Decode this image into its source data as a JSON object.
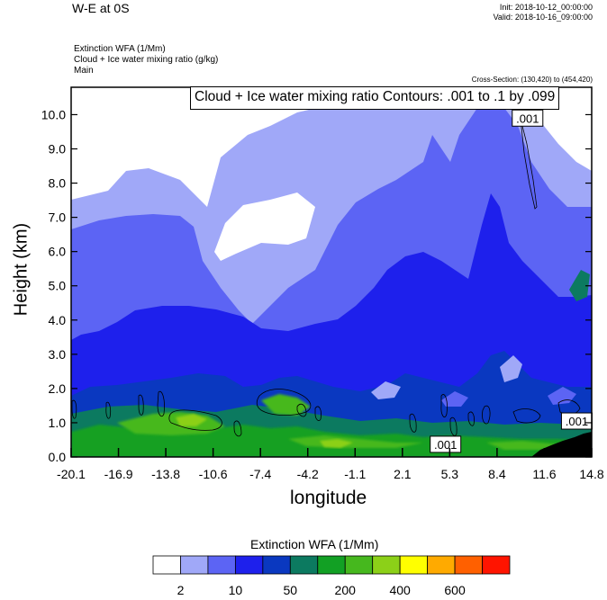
{
  "header": {
    "title": "W-E at 0S",
    "init": "Init: 2018-10-12_00:00:00",
    "valid": "Valid: 2018-10-16_09:00:00",
    "subtitle_lines": [
      "Extinction WFA   (1/Mm)",
      "Cloud + Ice water mixing ratio   (g/kg)",
      "Main"
    ],
    "cross_section": "Cross-Section: (130,420) to (454,420)",
    "contour_label": "Cloud + Ice water mixing ratio Contours: .001 to .1 by .099"
  },
  "chart_data": {
    "type": "heatmap",
    "xlabel": "longitude",
    "ylabel": "Height (km)",
    "xlim": [
      -20.1,
      14.8
    ],
    "ylim": [
      0.0,
      10.8
    ],
    "x_ticks": [
      "-20.1",
      "-16.9",
      "-13.8",
      "-10.6",
      "-7.4",
      "-4.2",
      "-1.1",
      "2.1",
      "5.3",
      "8.4",
      "11.6",
      "14.8"
    ],
    "y_ticks": [
      "0.0",
      "1.0",
      "2.0",
      "3.0",
      "4.0",
      "5.0",
      "6.0",
      "7.0",
      "8.0",
      "9.0",
      "10.0"
    ],
    "y_tick_values": [
      0,
      1,
      2,
      3,
      4,
      5,
      6,
      7,
      8,
      9,
      10
    ],
    "contour_labels": [
      {
        "text": ".001",
        "x": 10.5,
        "y": 9.9
      },
      {
        "text": ".001",
        "x": 5.0,
        "y": 0.37
      },
      {
        "text": ".001",
        "x": 13.8,
        "y": 1.05
      }
    ],
    "colorbar": {
      "title": "Extinction WFA  (1/Mm)",
      "colors": [
        "#ffffff",
        "#a0a8f8",
        "#5c64f4",
        "#1e20ec",
        "#0a38c0",
        "#0c7a60",
        "#12a024",
        "#46b81e",
        "#8cd018",
        "#ffff00",
        "#ffaa00",
        "#ff6000",
        "#ff1400"
      ],
      "labels": [
        "2",
        "10",
        "50",
        "200",
        "400",
        "600"
      ],
      "label_boundaries": [
        1,
        3,
        5,
        7,
        9,
        11
      ]
    }
  }
}
